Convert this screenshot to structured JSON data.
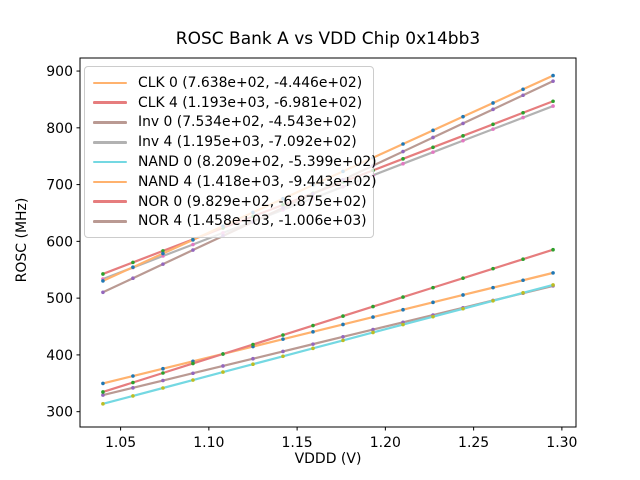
{
  "chart_data": {
    "type": "scatter",
    "title": "ROSC Bank A vs VDD Chip 0x14bb3",
    "xlabel": "VDDD (V)",
    "ylabel": "ROSC (MHz)",
    "xlim": [
      1.027,
      1.308
    ],
    "ylim": [
      273,
      923
    ],
    "xticks": [
      1.05,
      1.1,
      1.15,
      1.2,
      1.25,
      1.3
    ],
    "xtick_labels": [
      "1.05",
      "1.10",
      "1.15",
      "1.20",
      "1.25",
      "1.30"
    ],
    "yticks": [
      300,
      400,
      500,
      600,
      700,
      800,
      900
    ],
    "ytick_labels": [
      "300",
      "400",
      "500",
      "600",
      "700",
      "800",
      "900"
    ],
    "grid": false,
    "legend_position": "upper-left",
    "axis_color": "#000000",
    "x": [
      1.04,
      1.057,
      1.074,
      1.091,
      1.108,
      1.125,
      1.142,
      1.159,
      1.176,
      1.193,
      1.21,
      1.227,
      1.244,
      1.261,
      1.278,
      1.295
    ],
    "series": [
      {
        "name": "CLK 0",
        "legend_label": "CLK 0 (7.638e+02, -4.446e+02)",
        "fit_slope": 763.8,
        "fit_intercept": -444.6,
        "line_color": "#ffb26e",
        "marker_color": "#1f77b4",
        "values": [
          349.8,
          362.8,
          375.7,
          388.7,
          401.7,
          414.7,
          427.7,
          440.6,
          453.6,
          466.6,
          479.6,
          492.6,
          505.6,
          518.5,
          531.5,
          544.5
        ]
      },
      {
        "name": "CLK 4",
        "legend_label": "CLK 4 (1.193e+03, -6.981e+02)",
        "fit_slope": 1193.0,
        "fit_intercept": -698.1,
        "line_color": "#e67d7e",
        "marker_color": "#2ca02c",
        "values": [
          542.6,
          562.9,
          583.2,
          603.4,
          623.7,
          644.0,
          664.3,
          684.6,
          704.8,
          725.1,
          745.4,
          765.7,
          785.9,
          806.2,
          826.5,
          846.8
        ]
      },
      {
        "name": "Inv 0",
        "legend_label": "Inv 0 (7.534e+02, -4.543e+02)",
        "fit_slope": 753.4,
        "fit_intercept": -454.3,
        "line_color": "#ba9a93",
        "marker_color": "#9467bd",
        "values": [
          329.2,
          342.0,
          354.9,
          367.7,
          380.5,
          393.3,
          406.1,
          419.0,
          431.8,
          444.6,
          457.4,
          470.2,
          483.0,
          495.9,
          508.7,
          521.5
        ]
      },
      {
        "name": "Inv 4",
        "legend_label": "Inv 4 (1.195e+03, -7.092e+02)",
        "fit_slope": 1195.0,
        "fit_intercept": -709.2,
        "line_color": "#b2b2b2",
        "marker_color": "#e377c2",
        "values": [
          533.6,
          553.9,
          574.2,
          594.5,
          614.9,
          635.2,
          655.5,
          675.8,
          696.1,
          716.4,
          736.8,
          757.1,
          777.4,
          797.7,
          818.0,
          838.3
        ]
      },
      {
        "name": "NAND 0",
        "legend_label": "NAND 0 (8.209e+02, -5.399e+02)",
        "fit_slope": 820.9,
        "fit_intercept": -539.9,
        "line_color": "#74d8e2",
        "marker_color": "#bcbd22",
        "values": [
          313.8,
          327.8,
          341.7,
          355.7,
          369.7,
          383.6,
          397.6,
          411.6,
          425.5,
          439.5,
          453.4,
          467.4,
          481.3,
          495.3,
          509.3,
          523.2
        ]
      },
      {
        "name": "NAND 4",
        "legend_label": "NAND 4 (1.418e+03, -9.443e+02)",
        "fit_slope": 1418.0,
        "fit_intercept": -944.3,
        "line_color": "#ffb26e",
        "marker_color": "#1f77b4",
        "values": [
          530.4,
          554.5,
          578.6,
          602.7,
          626.8,
          651.0,
          675.1,
          699.2,
          723.3,
          747.4,
          771.5,
          795.6,
          819.7,
          843.8,
          867.9,
          892.0
        ]
      },
      {
        "name": "NOR 0",
        "legend_label": "NOR 0 (9.829e+02, -6.875e+02)",
        "fit_slope": 982.9,
        "fit_intercept": -687.5,
        "line_color": "#e67d7e",
        "marker_color": "#2ca02c",
        "values": [
          334.7,
          351.4,
          368.1,
          384.9,
          401.6,
          418.3,
          435.0,
          451.7,
          468.4,
          485.1,
          501.8,
          518.5,
          535.2,
          551.9,
          568.6,
          585.3
        ]
      },
      {
        "name": "NOR 4",
        "legend_label": "NOR 4 (1.458e+03, -1.006e+03)",
        "fit_slope": 1458.0,
        "fit_intercept": -1006.0,
        "line_color": "#ba9a93",
        "marker_color": "#9467bd",
        "values": [
          510.3,
          535.1,
          559.9,
          584.7,
          609.5,
          634.3,
          659.0,
          683.8,
          708.6,
          733.4,
          758.2,
          783.0,
          807.8,
          832.6,
          857.4,
          882.2
        ]
      }
    ]
  }
}
